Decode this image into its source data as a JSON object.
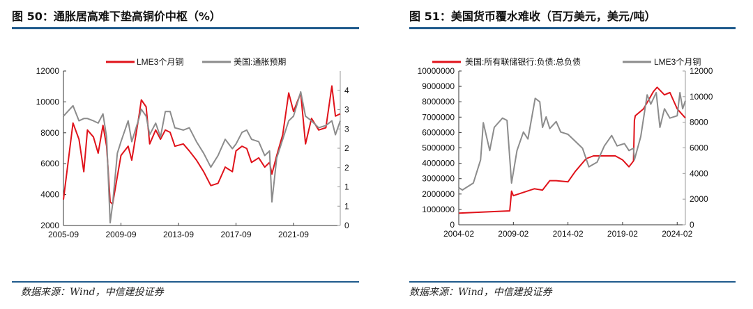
{
  "left": {
    "title": "图 50：通胀居高难下垫高铜价中枢（%）",
    "source": "数据来源：Wind，中信建投证券"
  },
  "right": {
    "title": "图 51：美国货币覆水难收（百万美元，美元/吨）",
    "source": "数据来源：Wind，中信建投证券"
  },
  "colors": {
    "red": "#e0131b",
    "gray": "#8c8c8c",
    "rule": "#1f5a8c",
    "axis": "#333333"
  },
  "chart_data": [
    {
      "type": "line",
      "x_ticks": [
        "2005-09",
        "2009-09",
        "2013-09",
        "2017-09",
        "2021-09"
      ],
      "x_range": [
        "2005-09",
        "2024-12"
      ],
      "y_left": {
        "range": [
          2000,
          12000
        ],
        "ticks": [
          2000,
          4000,
          6000,
          8000,
          10000,
          12000
        ]
      },
      "y_right": {
        "range": [
          0,
          4
        ],
        "ticks": [
          {
            "value": 0,
            "label": "0"
          },
          {
            "value": 0.5,
            "label": "1"
          },
          {
            "value": 1,
            "label": "1"
          },
          {
            "value": 1.5,
            "label": "2"
          },
          {
            "value": 2,
            "label": "2"
          },
          {
            "value": 2.5,
            "label": "3"
          },
          {
            "value": 3,
            "label": "3"
          },
          {
            "value": 3.5,
            "label": "4"
          }
        ]
      },
      "legend": "top",
      "grid": false,
      "series": [
        {
          "name": "LME3个月铜",
          "axis": "left",
          "color": "#e0131b",
          "x": [
            "2005-09",
            "2006-05",
            "2006-10",
            "2007-02",
            "2007-05",
            "2007-10",
            "2008-02",
            "2008-06",
            "2008-09",
            "2008-12",
            "2009-02",
            "2009-06",
            "2009-09",
            "2010-03",
            "2010-06",
            "2010-12",
            "2011-02",
            "2011-06",
            "2011-09",
            "2012-02",
            "2012-06",
            "2012-10",
            "2013-02",
            "2013-06",
            "2014-01",
            "2014-06",
            "2014-12",
            "2015-06",
            "2015-12",
            "2016-06",
            "2016-12",
            "2017-06",
            "2017-09",
            "2018-02",
            "2018-06",
            "2018-10",
            "2019-04",
            "2019-09",
            "2020-01",
            "2020-03",
            "2020-07",
            "2020-12",
            "2021-05",
            "2021-09",
            "2022-03",
            "2022-07",
            "2022-12",
            "2023-06",
            "2023-12",
            "2024-05",
            "2024-08",
            "2024-12"
          ],
          "y": [
            3680,
            8630,
            7580,
            5480,
            8180,
            7730,
            6680,
            8480,
            7130,
            3530,
            3380,
            5180,
            6530,
            7130,
            6230,
            9080,
            10130,
            9680,
            7280,
            8180,
            7580,
            8180,
            8030,
            7130,
            7280,
            6830,
            6230,
            5480,
            4580,
            4730,
            5780,
            5480,
            6830,
            7130,
            6980,
            6080,
            6380,
            5780,
            6080,
            5330,
            6530,
            7880,
            10580,
            9380,
            10580,
            7280,
            8930,
            8180,
            8330,
            11030,
            9080,
            9230
          ]
        },
        {
          "name": "美国:通胀预期",
          "axis": "right",
          "color": "#8c8c8c",
          "x": [
            "2005-09",
            "2006-05",
            "2006-10",
            "2007-02",
            "2007-05",
            "2007-10",
            "2008-02",
            "2008-06",
            "2008-09",
            "2008-12",
            "2009-02",
            "2009-06",
            "2009-09",
            "2010-03",
            "2010-06",
            "2010-12",
            "2011-02",
            "2011-06",
            "2011-09",
            "2012-02",
            "2012-06",
            "2012-10",
            "2013-02",
            "2013-06",
            "2014-01",
            "2014-06",
            "2014-12",
            "2015-06",
            "2015-12",
            "2016-06",
            "2016-12",
            "2017-06",
            "2017-09",
            "2018-02",
            "2018-06",
            "2018-10",
            "2019-04",
            "2019-09",
            "2020-01",
            "2020-03",
            "2020-07",
            "2020-12",
            "2021-05",
            "2021-09",
            "2022-03",
            "2022-07",
            "2022-12",
            "2023-06",
            "2023-12",
            "2024-05",
            "2024-08",
            "2024-12"
          ],
          "y": [
            2.83,
            3.1,
            2.71,
            2.77,
            2.77,
            2.71,
            2.65,
            2.89,
            2.29,
            0.07,
            0.55,
            1.87,
            2.17,
            2.71,
            2.17,
            2.77,
            3.01,
            2.83,
            2.35,
            2.65,
            2.29,
            2.95,
            2.95,
            2.53,
            2.47,
            2.53,
            2.17,
            1.87,
            1.51,
            1.81,
            2.23,
            1.99,
            2.11,
            2.41,
            2.47,
            2.23,
            2.17,
            1.81,
            1.93,
            0.61,
            1.75,
            2.23,
            2.71,
            2.83,
            3.46,
            2.83,
            2.71,
            2.53,
            2.59,
            2.71,
            2.35,
            2.71
          ]
        }
      ]
    },
    {
      "type": "line",
      "x_ticks": [
        "2004-02",
        "2009-02",
        "2014-02",
        "2019-02",
        "2024-02"
      ],
      "x_range": [
        "2004-02",
        "2024-11"
      ],
      "y_left": {
        "range": [
          0,
          10000000
        ],
        "ticks": [
          0,
          1000000,
          2000000,
          3000000,
          4000000,
          5000000,
          6000000,
          7000000,
          8000000,
          9000000,
          10000000
        ]
      },
      "y_right": {
        "range": [
          0,
          12000
        ],
        "ticks": [
          {
            "value": 0,
            "label": "0"
          },
          {
            "value": 2000,
            "label": "2000"
          },
          {
            "value": 4000,
            "label": "4000"
          },
          {
            "value": 6000,
            "label": "6000"
          },
          {
            "value": 8000,
            "label": "8000"
          },
          {
            "value": 10000,
            "label": "10000"
          },
          {
            "value": 12000,
            "label": "12000"
          }
        ]
      },
      "legend": "top",
      "grid": false,
      "series": [
        {
          "name": "美国:所有联储银行:负债:总负债",
          "axis": "left",
          "color": "#e0131b",
          "x": [
            "2004-02",
            "2008-10",
            "2008-12",
            "2009-02",
            "2010-01",
            "2011-01",
            "2011-10",
            "2012-06",
            "2013-01",
            "2014-02",
            "2014-10",
            "2015-10",
            "2016-06",
            "2018-06",
            "2019-02",
            "2019-09",
            "2020-02",
            "2020-03",
            "2020-04",
            "2021-01",
            "2021-12",
            "2022-04",
            "2022-12",
            "2023-06",
            "2024-02",
            "2024-11"
          ],
          "y": [
            754000,
            905000,
            2190000,
            1890000,
            2110000,
            2340000,
            2260000,
            2870000,
            2870000,
            2790000,
            3470000,
            4300000,
            4480000,
            4480000,
            4220000,
            3770000,
            4150000,
            6790000,
            7090000,
            7540000,
            8670000,
            8940000,
            8450000,
            8600000,
            7540000,
            6940000
          ]
        },
        {
          "name": "LME3个月铜",
          "axis": "right",
          "color": "#8c8c8c",
          "x": [
            "2004-02",
            "2004-06",
            "2005-06",
            "2006-02",
            "2006-05",
            "2006-12",
            "2007-05",
            "2008-02",
            "2008-07",
            "2008-12",
            "2009-06",
            "2010-01",
            "2010-06",
            "2011-02",
            "2011-07",
            "2011-10",
            "2012-02",
            "2012-06",
            "2013-01",
            "2013-06",
            "2014-02",
            "2014-10",
            "2015-06",
            "2016-01",
            "2016-10",
            "2017-06",
            "2018-02",
            "2018-08",
            "2019-04",
            "2019-09",
            "2020-02",
            "2020-03",
            "2020-10",
            "2021-05",
            "2021-09",
            "2022-03",
            "2022-07",
            "2022-12",
            "2023-06",
            "2024-02",
            "2024-05",
            "2024-08",
            "2024-11"
          ],
          "y": [
            2896,
            2715,
            3258,
            5068,
            7964,
            5792,
            7602,
            8326,
            8145,
            3258,
            5792,
            7240,
            6697,
            9864,
            9593,
            7602,
            8416,
            7511,
            8054,
            7240,
            7059,
            6516,
            5973,
            4525,
            4887,
            6154,
            6968,
            6154,
            6335,
            5792,
            5973,
            5068,
            6878,
            10136,
            9412,
            10317,
            7602,
            9050,
            8326,
            8507,
            10317,
            9050,
            9684
          ]
        }
      ]
    }
  ]
}
